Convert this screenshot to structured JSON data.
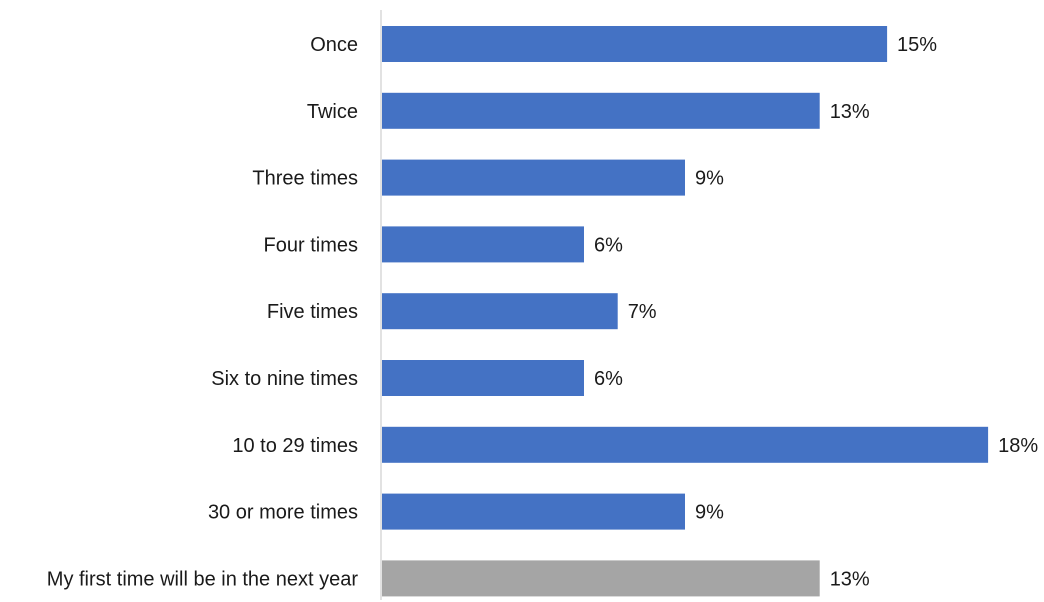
{
  "chart_data": {
    "type": "bar",
    "orientation": "horizontal",
    "title": "",
    "xlabel": "",
    "ylabel": "",
    "categories": [
      "Once",
      "Twice",
      "Three times",
      "Four times",
      "Five times",
      "Six to nine times",
      "10 to 29 times",
      "30 or more times",
      "My first time will be in the next year"
    ],
    "values": [
      15,
      13,
      9,
      6,
      7,
      6,
      18,
      9,
      13
    ],
    "data_labels": [
      "15%",
      "13%",
      "9%",
      "6%",
      "7%",
      "6%",
      "18%",
      "9%",
      "13%"
    ],
    "bar_colors": [
      "#4472c4",
      "#4472c4",
      "#4472c4",
      "#4472c4",
      "#4472c4",
      "#4472c4",
      "#4472c4",
      "#4472c4",
      "#a5a5a5"
    ],
    "xlim": [
      0,
      18
    ],
    "grid": false,
    "legend": "none",
    "axis_color": "#d9d9d9"
  }
}
